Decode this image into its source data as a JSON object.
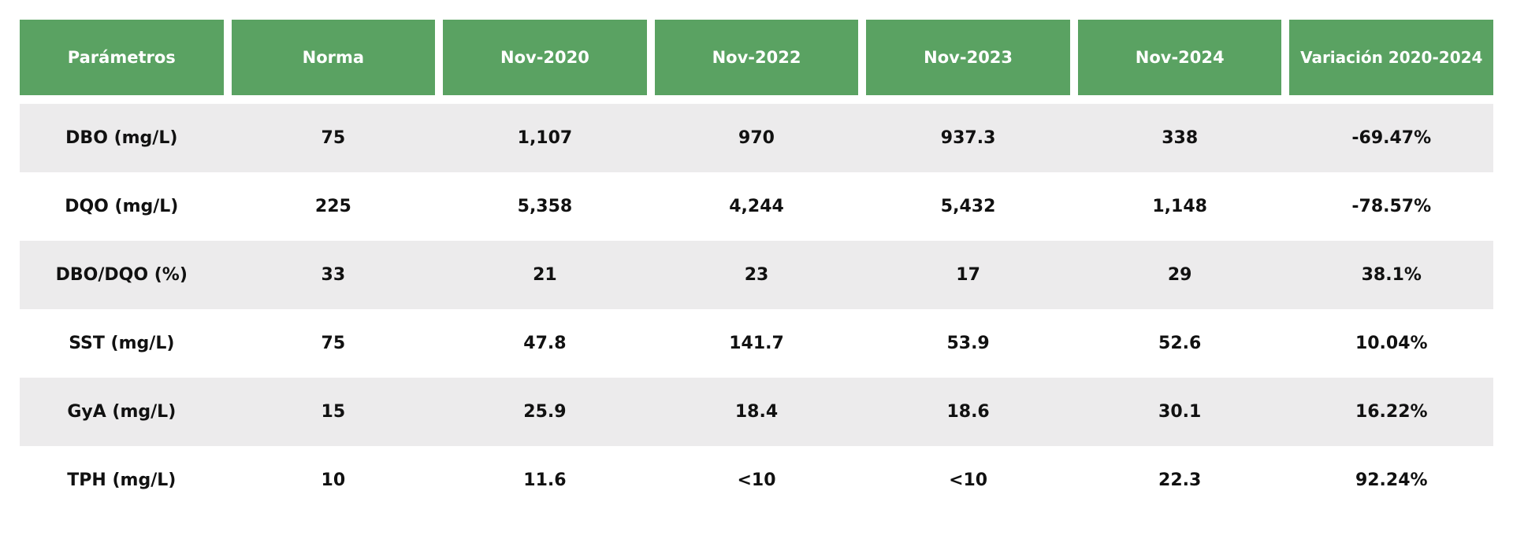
{
  "table": {
    "headers": [
      "Parámetros",
      "Norma",
      "Nov-2020",
      "Nov-2022",
      "Nov-2023",
      "Nov-2024",
      "Variación 2020-2024"
    ],
    "rows": [
      [
        "DBO (mg/L)",
        "75",
        "1,107",
        "970",
        "937.3",
        "338",
        "-69.47%"
      ],
      [
        "DQO (mg/L)",
        "225",
        "5,358",
        "4,244",
        "5,432",
        "1,148",
        "-78.57%"
      ],
      [
        "DBO/DQO (%)",
        "33",
        "21",
        "23",
        "17",
        "29",
        "38.1%"
      ],
      [
        "SST (mg/L)",
        "75",
        "47.8",
        "141.7",
        "53.9",
        "52.6",
        "10.04%"
      ],
      [
        "GyA (mg/L)",
        "15",
        "25.9",
        "18.4",
        "18.6",
        "30.1",
        "16.22%"
      ],
      [
        "TPH (mg/L)",
        "10",
        "11.6",
        "<10",
        "<10",
        "22.3",
        "92.24%"
      ]
    ]
  },
  "colors": {
    "header_bg": "#5aa262",
    "header_text": "#ffffff",
    "row_shaded": "#ecebec",
    "row_plain": "#ffffff"
  }
}
